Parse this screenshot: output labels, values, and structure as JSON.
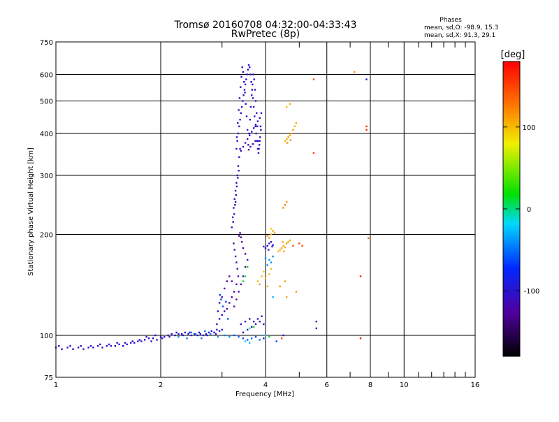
{
  "header": {
    "title_line1": "Tromsø 20160708 04:32:00-04:33:43",
    "title_line2": "RwPretec (8p)",
    "stats_title": "Phases",
    "stats_o": "mean, sd,O: -98.9, 15.3",
    "stats_x": "mean, sd,X:  91.3, 29.1"
  },
  "colorbar": {
    "label": "[deg]",
    "range": [
      -180,
      180
    ],
    "ticks": [
      {
        "value": 100,
        "label": "100"
      },
      {
        "value": 0,
        "label": "0"
      },
      {
        "value": -100,
        "label": "-100"
      }
    ]
  },
  "chart_data": {
    "type": "scatter",
    "title": "Tromsø 20160708 04:32:00-04:33:43",
    "subtitle": "RwPretec (8p)",
    "xlabel": "Frequency [MHz]",
    "ylabel": "Stationary phase Virtual Height [km]",
    "x_scale": "log",
    "y_scale": "log",
    "xlim": [
      1,
      16
    ],
    "ylim": [
      75,
      750
    ],
    "x_ticks": [
      {
        "value": 1,
        "label": "1"
      },
      {
        "value": 2,
        "label": "2"
      },
      {
        "value": 4,
        "label": "4"
      },
      {
        "value": 6,
        "label": "6"
      },
      {
        "value": 8,
        "label": "8"
      },
      {
        "value": 10,
        "label": "10"
      },
      {
        "value": 16,
        "label": "16"
      }
    ],
    "x_minor": [
      3,
      5,
      7,
      9,
      11,
      12,
      13,
      14,
      15
    ],
    "x_grid": [
      2,
      4,
      6,
      8,
      10
    ],
    "y_ticks": [
      {
        "value": 75,
        "label": "75"
      },
      {
        "value": 100,
        "label": "100"
      },
      {
        "value": 200,
        "label": "200"
      },
      {
        "value": 300,
        "label": "300"
      },
      {
        "value": 400,
        "label": "400"
      },
      {
        "value": 500,
        "label": "500"
      },
      {
        "value": 600,
        "label": "600"
      },
      {
        "value": 750,
        "label": "750"
      }
    ],
    "y_grid": [
      100,
      200,
      300,
      400,
      500,
      600
    ],
    "color_encoding": "phase_deg",
    "points": [
      [
        1.0,
        92,
        -100
      ],
      [
        1.04,
        91,
        -98
      ],
      [
        1.08,
        92,
        -102
      ],
      [
        1.12,
        91,
        -100
      ],
      [
        1.16,
        92,
        -97
      ],
      [
        1.2,
        91,
        -101
      ],
      [
        1.24,
        92,
        -99
      ],
      [
        1.28,
        92,
        -103
      ],
      [
        1.32,
        93,
        -100
      ],
      [
        1.36,
        92,
        -98
      ],
      [
        1.4,
        93,
        -102
      ],
      [
        1.44,
        93,
        -99
      ],
      [
        1.48,
        93,
        -101
      ],
      [
        1.52,
        94,
        -97
      ],
      [
        1.56,
        93,
        -100
      ],
      [
        1.6,
        94,
        -103
      ],
      [
        1.64,
        95,
        -99
      ],
      [
        1.68,
        95,
        -101
      ],
      [
        1.72,
        96,
        -98
      ],
      [
        1.76,
        96,
        -100
      ],
      [
        1.8,
        97,
        -102
      ],
      [
        1.85,
        98,
        -99
      ],
      [
        1.9,
        98,
        -101
      ],
      [
        1.95,
        97,
        -100
      ],
      [
        2.0,
        99,
        -98
      ],
      [
        2.05,
        99,
        -102
      ],
      [
        2.1,
        100,
        -99
      ],
      [
        2.15,
        101,
        -101
      ],
      [
        2.2,
        100,
        -100
      ],
      [
        2.25,
        101,
        -97
      ],
      [
        2.3,
        101,
        -103
      ],
      [
        2.35,
        102,
        -99
      ],
      [
        2.4,
        101,
        -100
      ],
      [
        2.45,
        100,
        -101
      ],
      [
        2.5,
        101,
        -98
      ],
      [
        2.55,
        100,
        -102
      ],
      [
        2.6,
        101,
        -99
      ],
      [
        2.65,
        100,
        -100
      ],
      [
        2.7,
        101,
        -97
      ],
      [
        2.75,
        102,
        -101
      ],
      [
        2.8,
        103,
        -100
      ],
      [
        2.85,
        102,
        -99
      ],
      [
        2.9,
        104,
        -102
      ],
      [
        2.95,
        103,
        -100
      ],
      [
        3.0,
        104,
        -98
      ],
      [
        1.02,
        93,
        -99
      ],
      [
        1.1,
        93,
        -101
      ],
      [
        1.18,
        93,
        -100
      ],
      [
        1.26,
        93,
        -98
      ],
      [
        1.34,
        94,
        -102
      ],
      [
        1.42,
        94,
        -100
      ],
      [
        1.5,
        95,
        -99
      ],
      [
        1.58,
        95,
        -101
      ],
      [
        1.66,
        96,
        -100
      ],
      [
        1.74,
        97,
        -98
      ],
      [
        1.82,
        99,
        -102
      ],
      [
        1.88,
        96,
        -100
      ],
      [
        1.93,
        100,
        -101
      ],
      [
        2.02,
        98,
        -99
      ],
      [
        2.12,
        99,
        -102
      ],
      [
        2.22,
        102,
        -98
      ],
      [
        2.32,
        100,
        -100
      ],
      [
        2.42,
        102,
        -101
      ],
      [
        2.58,
        102,
        -99
      ],
      [
        2.72,
        100,
        -100
      ],
      [
        2.88,
        101,
        -102
      ],
      [
        2.25,
        99,
        -40
      ],
      [
        2.38,
        98,
        -45
      ],
      [
        2.52,
        101,
        -42
      ],
      [
        2.62,
        98,
        -48
      ],
      [
        2.78,
        101,
        -44
      ],
      [
        2.92,
        99,
        -38
      ],
      [
        3.05,
        100,
        -46
      ],
      [
        3.15,
        99,
        -41
      ],
      [
        2.45,
        102,
        -50
      ],
      [
        2.68,
        103,
        -47
      ],
      [
        2.9,
        108,
        -105
      ],
      [
        2.95,
        112,
        -110
      ],
      [
        3.0,
        115,
        -108
      ],
      [
        3.05,
        118,
        -112
      ],
      [
        3.1,
        120,
        -115
      ],
      [
        3.15,
        125,
        -118
      ],
      [
        3.2,
        130,
        -120
      ],
      [
        3.25,
        135,
        -118
      ],
      [
        3.3,
        142,
        -122
      ],
      [
        3.2,
        145,
        -115
      ],
      [
        3.15,
        150,
        -125
      ],
      [
        3.1,
        145,
        -120
      ],
      [
        3.05,
        138,
        -118
      ],
      [
        3.0,
        130,
        -115
      ],
      [
        2.95,
        125,
        -112
      ],
      [
        2.92,
        118,
        -108
      ],
      [
        2.98,
        128,
        -60
      ],
      [
        3.02,
        122,
        -55
      ],
      [
        2.96,
        132,
        -65
      ],
      [
        3.08,
        126,
        -62
      ],
      [
        3.12,
        112,
        -58
      ],
      [
        3.25,
        122,
        -120
      ],
      [
        3.3,
        128,
        -125
      ],
      [
        3.35,
        135,
        -122
      ],
      [
        3.4,
        142,
        -128
      ],
      [
        3.45,
        150,
        -120
      ],
      [
        3.5,
        160,
        -125
      ],
      [
        3.55,
        168,
        -122
      ],
      [
        3.5,
        175,
        -130
      ],
      [
        3.45,
        182,
        -126
      ],
      [
        3.42,
        190,
        -124
      ],
      [
        3.4,
        196,
        -128
      ],
      [
        3.38,
        202,
        -122
      ],
      [
        3.36,
        198,
        -130
      ],
      [
        3.34,
        150,
        -118
      ],
      [
        3.32,
        158,
        -124
      ],
      [
        3.3,
        165,
        -120
      ],
      [
        3.28,
        172,
        -126
      ],
      [
        3.26,
        180,
        -122
      ],
      [
        3.24,
        188,
        -128
      ],
      [
        3.2,
        210,
        -110
      ],
      [
        3.22,
        225,
        -112
      ],
      [
        3.24,
        240,
        -108
      ],
      [
        3.26,
        255,
        -110
      ],
      [
        3.28,
        270,
        -115
      ],
      [
        3.3,
        285,
        -112
      ],
      [
        3.32,
        300,
        -110
      ],
      [
        3.34,
        320,
        -108
      ],
      [
        3.36,
        340,
        -110
      ],
      [
        3.38,
        360,
        -112
      ],
      [
        3.25,
        230,
        -105
      ],
      [
        3.27,
        245,
        -108
      ],
      [
        3.29,
        262,
        -112
      ],
      [
        3.31,
        278,
        -110
      ],
      [
        3.33,
        295,
        -106
      ],
      [
        3.35,
        310,
        -110
      ],
      [
        3.23,
        218,
        -112
      ],
      [
        3.28,
        250,
        -108
      ],
      [
        3.3,
        360,
        -105
      ],
      [
        3.32,
        380,
        -102
      ],
      [
        3.34,
        400,
        -100
      ],
      [
        3.36,
        420,
        -104
      ],
      [
        3.38,
        440,
        -100
      ],
      [
        3.4,
        460,
        -98
      ],
      [
        3.42,
        480,
        -102
      ],
      [
        3.44,
        500,
        -100
      ],
      [
        3.46,
        520,
        -104
      ],
      [
        3.48,
        540,
        -100
      ],
      [
        3.5,
        560,
        -98
      ],
      [
        3.52,
        580,
        -102
      ],
      [
        3.54,
        600,
        -100
      ],
      [
        3.56,
        620,
        -104
      ],
      [
        3.58,
        640,
        -100
      ],
      [
        3.6,
        630,
        -98
      ],
      [
        3.62,
        600,
        -102
      ],
      [
        3.64,
        570,
        -100
      ],
      [
        3.66,
        540,
        -104
      ],
      [
        3.68,
        510,
        -100
      ],
      [
        3.7,
        480,
        -98
      ],
      [
        3.72,
        450,
        -102
      ],
      [
        3.74,
        420,
        -100
      ],
      [
        3.76,
        400,
        -104
      ],
      [
        3.78,
        380,
        -100
      ],
      [
        3.8,
        360,
        -98
      ],
      [
        3.82,
        350,
        -102
      ],
      [
        3.84,
        370,
        -100
      ],
      [
        3.86,
        390,
        -104
      ],
      [
        3.88,
        410,
        -100
      ],
      [
        3.31,
        390,
        -100
      ],
      [
        3.33,
        430,
        -102
      ],
      [
        3.35,
        470,
        -98
      ],
      [
        3.37,
        510,
        -100
      ],
      [
        3.39,
        550,
        -104
      ],
      [
        3.41,
        590,
        -100
      ],
      [
        3.43,
        630,
        -102
      ],
      [
        3.45,
        610,
        -98
      ],
      [
        3.47,
        570,
        -100
      ],
      [
        3.49,
        530,
        -104
      ],
      [
        3.51,
        490,
        -100
      ],
      [
        3.53,
        450,
        -102
      ],
      [
        3.55,
        410,
        -98
      ],
      [
        3.57,
        370,
        -100
      ],
      [
        3.59,
        400,
        -104
      ],
      [
        3.61,
        440,
        -100
      ],
      [
        3.63,
        480,
        -102
      ],
      [
        3.65,
        520,
        -98
      ],
      [
        3.67,
        560,
        -100
      ],
      [
        3.69,
        600,
        -104
      ],
      [
        3.71,
        580,
        -100
      ],
      [
        3.73,
        540,
        -102
      ],
      [
        3.75,
        500,
        -98
      ],
      [
        3.77,
        460,
        -100
      ],
      [
        3.79,
        420,
        -104
      ],
      [
        3.81,
        380,
        -100
      ],
      [
        3.83,
        360,
        -102
      ],
      [
        3.85,
        380,
        -98
      ],
      [
        3.87,
        420,
        -100
      ],
      [
        3.89,
        460,
        -104
      ],
      [
        3.4,
        355,
        -110
      ],
      [
        3.45,
        365,
        -108
      ],
      [
        3.5,
        375,
        -112
      ],
      [
        3.55,
        385,
        -110
      ],
      [
        3.6,
        395,
        -108
      ],
      [
        3.65,
        405,
        -112
      ],
      [
        3.7,
        415,
        -110
      ],
      [
        3.75,
        425,
        -108
      ],
      [
        3.8,
        435,
        -112
      ],
      [
        3.85,
        445,
        -110
      ],
      [
        3.62,
        365,
        -120
      ],
      [
        3.68,
        372,
        -118
      ],
      [
        3.74,
        380,
        -122
      ],
      [
        3.58,
        358,
        -120
      ],
      [
        3.4,
        108,
        -105
      ],
      [
        3.5,
        110,
        -100
      ],
      [
        3.6,
        112,
        -108
      ],
      [
        3.7,
        110,
        -102
      ],
      [
        3.8,
        112,
        -110
      ],
      [
        3.9,
        114,
        -104
      ],
      [
        3.55,
        104,
        -106
      ],
      [
        3.65,
        106,
        -100
      ],
      [
        3.75,
        108,
        -108
      ],
      [
        3.85,
        110,
        -102
      ],
      [
        3.45,
        102,
        -110
      ],
      [
        3.95,
        108,
        -106
      ],
      [
        3.25,
        100,
        -60
      ],
      [
        3.35,
        99,
        -55
      ],
      [
        3.45,
        98,
        -62
      ],
      [
        3.55,
        97,
        -58
      ],
      [
        3.65,
        98,
        -50
      ],
      [
        3.75,
        99,
        -65
      ],
      [
        3.5,
        96,
        -20
      ],
      [
        3.6,
        95,
        -25
      ],
      [
        3.5,
        150,
        10
      ],
      [
        3.55,
        160,
        20
      ],
      [
        3.45,
        145,
        15
      ],
      [
        4.0,
        182,
        -100
      ],
      [
        4.05,
        185,
        -102
      ],
      [
        4.1,
        188,
        -98
      ],
      [
        4.15,
        190,
        -100
      ],
      [
        4.2,
        186,
        -104
      ],
      [
        3.95,
        184,
        -100
      ],
      [
        4.08,
        180,
        -102
      ],
      [
        4.18,
        184,
        -98
      ],
      [
        4.1,
        195,
        110
      ],
      [
        4.15,
        200,
        105
      ],
      [
        4.2,
        205,
        112
      ],
      [
        4.25,
        202,
        108
      ],
      [
        4.05,
        198,
        115
      ],
      [
        4.15,
        208,
        95
      ],
      [
        3.8,
        145,
        100
      ],
      [
        3.9,
        150,
        105
      ],
      [
        4.0,
        148,
        98
      ],
      [
        4.1,
        152,
        102
      ],
      [
        3.85,
        142,
        110
      ],
      [
        3.95,
        155,
        95
      ],
      [
        4.05,
        140,
        105
      ],
      [
        4.15,
        158,
        100
      ],
      [
        4.4,
        180,
        108
      ],
      [
        4.45,
        182,
        112
      ],
      [
        4.5,
        185,
        105
      ],
      [
        4.55,
        183,
        110
      ],
      [
        4.6,
        188,
        115
      ],
      [
        4.35,
        178,
        100
      ],
      [
        4.48,
        190,
        108
      ],
      [
        4.52,
        178,
        112
      ],
      [
        4.65,
        190,
        105
      ],
      [
        4.7,
        192,
        110
      ],
      [
        4.5,
        240,
        120
      ],
      [
        4.55,
        245,
        125
      ],
      [
        4.6,
        250,
        118
      ],
      [
        4.55,
        380,
        100
      ],
      [
        4.6,
        385,
        105
      ],
      [
        4.65,
        390,
        110
      ],
      [
        4.7,
        395,
        108
      ],
      [
        4.75,
        400,
        112
      ],
      [
        4.8,
        410,
        115
      ],
      [
        4.85,
        420,
        110
      ],
      [
        4.9,
        430,
        105
      ],
      [
        4.62,
        375,
        120
      ],
      [
        4.72,
        382,
        115
      ],
      [
        4.6,
        480,
        100
      ],
      [
        4.7,
        490,
        105
      ],
      [
        4.6,
        130,
        110
      ],
      [
        4.9,
        135,
        115
      ],
      [
        4.0,
        170,
        -40
      ],
      [
        4.1,
        168,
        -35
      ],
      [
        4.2,
        172,
        -45
      ],
      [
        4.05,
        162,
        -38
      ],
      [
        4.15,
        165,
        -42
      ],
      [
        3.6,
        105,
        -10
      ],
      [
        3.7,
        106,
        20
      ],
      [
        4.8,
        185,
        140
      ],
      [
        5.0,
        188,
        150
      ],
      [
        5.1,
        185,
        145
      ],
      [
        5.5,
        580,
        150
      ],
      [
        5.5,
        350,
        155
      ],
      [
        5.6,
        105,
        -100
      ],
      [
        5.6,
        110,
        -110
      ],
      [
        7.2,
        610,
        120
      ],
      [
        7.5,
        150,
        170
      ],
      [
        7.8,
        420,
        160
      ],
      [
        7.8,
        410,
        165
      ],
      [
        7.9,
        195,
        130
      ],
      [
        7.8,
        580,
        -100
      ],
      [
        7.5,
        98,
        175
      ],
      [
        4.4,
        140,
        120
      ],
      [
        4.55,
        145,
        115
      ],
      [
        4.2,
        130,
        -30
      ],
      [
        3.85,
        97,
        -50
      ],
      [
        3.95,
        98,
        -80
      ],
      [
        4.0,
        100,
        -20
      ],
      [
        4.1,
        99,
        10
      ],
      [
        4.3,
        96,
        -60
      ],
      [
        4.45,
        98,
        150
      ],
      [
        4.5,
        100,
        -100
      ]
    ]
  }
}
